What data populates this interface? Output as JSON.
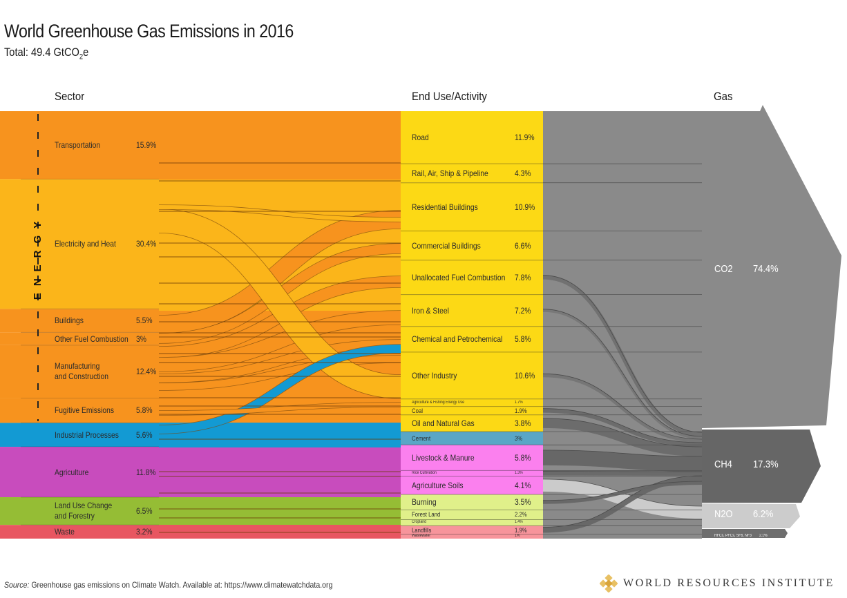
{
  "header": {
    "title": "World Greenhouse Gas Emissions in 2016",
    "subtitle_prefix": "Total: 49.4 GtCO",
    "subtitle_sub": "2",
    "subtitle_suffix": "e"
  },
  "columns": {
    "sector": "Sector",
    "end_use": "End Use/Activity",
    "gas": "Gas"
  },
  "energy_group_label": "ENERGY",
  "colors": {
    "energy_orange": "#f7931e",
    "energy_amber": "#fbb51a",
    "industrial_blue": "#139ad3",
    "agriculture_purple": "#c84cbd",
    "land_use_green": "#95bd35",
    "waste_red": "#e85661",
    "enduse_yellow": "#fcd915",
    "enduse_cement": "#5aa6c6",
    "enduse_pink": "#fb80ee",
    "enduse_lime": "#e0f08a",
    "enduse_salmon": "#f7949b",
    "gas_co2": "#8a8a8a",
    "gas_ch4": "#666666",
    "gas_n2o": "#cccccc",
    "gas_fgas": "#6e6e6e"
  },
  "chart_data": {
    "type": "sankey",
    "title": "World Greenhouse Gas Emissions in 2016",
    "subtitle": "Total: 49.4 GtCO2e",
    "unit": "% of total emissions",
    "sectors": [
      {
        "label": "Transportation",
        "value_text": "15.9%",
        "value": 15.9,
        "group": "Energy"
      },
      {
        "label": "Electricity and Heat",
        "value_text": "30.4%",
        "value": 30.4,
        "group": "Energy"
      },
      {
        "label": "Buildings",
        "value_text": "5.5%",
        "value": 5.5,
        "group": "Energy"
      },
      {
        "label": "Other Fuel Combustion",
        "value_text": "3%",
        "value": 3.0,
        "group": "Energy"
      },
      {
        "label": "Manufacturing and Construction",
        "label_line1": "Manufacturing",
        "label_line2": "and Construction",
        "value_text": "12.4%",
        "value": 12.4,
        "group": "Energy"
      },
      {
        "label": "Fugitive Emissions",
        "value_text": "5.8%",
        "value": 5.8,
        "group": "Energy"
      },
      {
        "label": "Industrial Processes",
        "value_text": "5.6%",
        "value": 5.6,
        "group": "Industrial Processes"
      },
      {
        "label": "Agriculture",
        "value_text": "11.8%",
        "value": 11.8,
        "group": "Agriculture"
      },
      {
        "label": "Land Use Change and Forestry",
        "label_line1": "Land Use Change",
        "label_line2": "and Forestry",
        "value_text": "6.5%",
        "value": 6.5,
        "group": "Land Use"
      },
      {
        "label": "Waste",
        "value_text": "3.2%",
        "value": 3.2,
        "group": "Waste"
      }
    ],
    "end_uses": [
      {
        "label": "Road",
        "value_text": "11.9%",
        "value": 11.9
      },
      {
        "label": "Rail, Air, Ship & Pipeline",
        "value_text": "4.3%",
        "value": 4.3
      },
      {
        "label": "Residential Buildings",
        "value_text": "10.9%",
        "value": 10.9
      },
      {
        "label": "Commercial Buildings",
        "value_text": "6.6%",
        "value": 6.6
      },
      {
        "label": "Unallocated Fuel Combustion",
        "value_text": "7.8%",
        "value": 7.8
      },
      {
        "label": "Iron & Steel",
        "value_text": "7.2%",
        "value": 7.2
      },
      {
        "label": "Chemical and Petrochemical",
        "value_text": "5.8%",
        "value": 5.8
      },
      {
        "label": "Other Industry",
        "value_text": "10.6%",
        "value": 10.6
      },
      {
        "label": "Agriculture & Fishing Energy Use",
        "value_text": "1.7%",
        "value": 1.7
      },
      {
        "label": "Coal",
        "value_text": "1.9%",
        "value": 1.9
      },
      {
        "label": "Oil and Natural Gas",
        "value_text": "3.8%",
        "value": 3.8
      },
      {
        "label": "Cement",
        "value_text": "3%",
        "value": 3.0
      },
      {
        "label": "Livestock & Manure",
        "value_text": "5.8%",
        "value": 5.8
      },
      {
        "label": "Rice Cultivation",
        "value_text": "1.3%",
        "value": 1.3
      },
      {
        "label": "Agriculture Soils",
        "value_text": "4.1%",
        "value": 4.1
      },
      {
        "label": "Burning",
        "value_text": "3.5%",
        "value": 3.5
      },
      {
        "label": "Forest Land",
        "value_text": "2.2%",
        "value": 2.2
      },
      {
        "label": "Cropland",
        "value_text": "1.4%",
        "value": 1.4
      },
      {
        "label": "Landfills",
        "value_text": "1.9%",
        "value": 1.9
      },
      {
        "label": "Wastewater",
        "value_text": "1%",
        "value": 1.0
      }
    ],
    "gases": [
      {
        "label": "CO2",
        "value_text": "74.4%",
        "value": 74.4
      },
      {
        "label": "CH4",
        "value_text": "17.3%",
        "value": 17.3
      },
      {
        "label": "N2O",
        "value_text": "6.2%",
        "value": 6.2
      },
      {
        "label": "HFCs, PFCs, SF6, NF3",
        "value_text": "2.1%",
        "value": 2.1
      }
    ]
  },
  "footer": {
    "source_label": "Source:",
    "source_text": " Greenhouse gas emissions on Climate Watch. Available at: https://www.climatewatchdata.org",
    "org_name": "WORLD RESOURCES INSTITUTE"
  }
}
